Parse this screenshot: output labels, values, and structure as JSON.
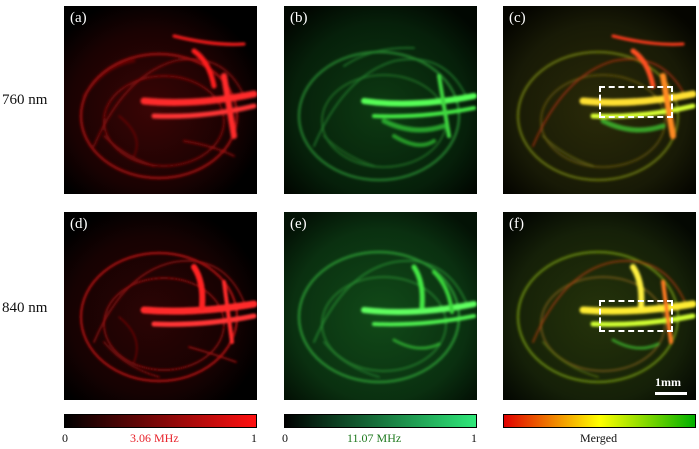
{
  "rows": [
    {
      "label": "760 nm"
    },
    {
      "label": "840 nm"
    }
  ],
  "panels": [
    {
      "letter": "(a)",
      "channel": "red",
      "roi": false,
      "scale_bar": false
    },
    {
      "letter": "(b)",
      "channel": "green",
      "roi": false,
      "scale_bar": false
    },
    {
      "letter": "(c)",
      "channel": "merged",
      "roi": true,
      "scale_bar": false
    },
    {
      "letter": "(d)",
      "channel": "red",
      "roi": false,
      "scale_bar": false
    },
    {
      "letter": "(e)",
      "channel": "green",
      "roi": false,
      "scale_bar": false
    },
    {
      "letter": "(f)",
      "channel": "merged",
      "roi": true,
      "scale_bar": true
    }
  ],
  "scale_bar": {
    "label": "1mm"
  },
  "colorbars": [
    {
      "min_label": "0",
      "max_label": "1",
      "caption": "3.06 MHz",
      "caption_color": "#e8232b",
      "gradient": [
        "#000000",
        "#ff1010"
      ]
    },
    {
      "min_label": "0",
      "max_label": "1",
      "caption": "11.07 MHz",
      "caption_color": "#1f7a1f",
      "gradient": [
        "#000000",
        "#2fe87a"
      ]
    },
    {
      "min_label": "",
      "max_label": "",
      "caption": "Merged",
      "caption_color": "#111111",
      "gradient": [
        "#e00000",
        "#ffff00",
        "#00b000"
      ]
    }
  ],
  "colors": {
    "red_channel": "#ff2020",
    "green_channel": "#33dd33",
    "background": "#ffffff"
  }
}
